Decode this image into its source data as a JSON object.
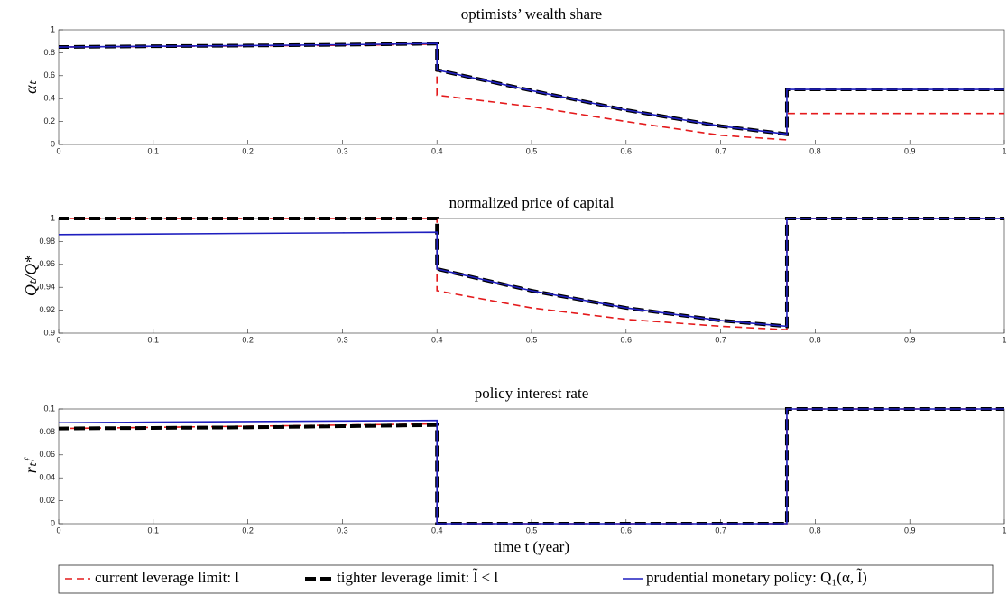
{
  "chart_data": [
    {
      "type": "line",
      "title": "optimists’ wealth share",
      "ylabel": "αₜ",
      "x": [
        0,
        0.1,
        0.2,
        0.3,
        0.4,
        0.4,
        0.5,
        0.6,
        0.7,
        0.77,
        0.77,
        0.8,
        0.9,
        1
      ],
      "xlim": [
        0,
        1
      ],
      "xticks": [
        0,
        0.1,
        0.2,
        0.3,
        0.4,
        0.5,
        0.6,
        0.7,
        0.8,
        0.9,
        1
      ],
      "ylim": [
        0,
        1
      ],
      "yticks": [
        0,
        0.2,
        0.4,
        0.6,
        0.8,
        1
      ],
      "series": [
        {
          "name": "current leverage limit: l",
          "color": "#e41a1c",
          "line_style": "dashed",
          "line_width": 1.6,
          "values": [
            0.85,
            0.855,
            0.86,
            0.865,
            0.875,
            0.43,
            0.33,
            0.2,
            0.08,
            0.04,
            0.27,
            0.27,
            0.27,
            0.27
          ]
        },
        {
          "name": "tighter leverage limit: l̃ < l",
          "color": "#000000",
          "line_style": "dashed",
          "line_width": 4,
          "values": [
            0.85,
            0.857,
            0.863,
            0.87,
            0.88,
            0.65,
            0.47,
            0.3,
            0.16,
            0.09,
            0.48,
            0.48,
            0.48,
            0.48
          ]
        },
        {
          "name": "prudential monetary policy: Q₁(α, l̃)",
          "color": "#1f1fbf",
          "line_style": "solid",
          "line_width": 1.6,
          "values": [
            0.85,
            0.857,
            0.863,
            0.87,
            0.88,
            0.65,
            0.47,
            0.3,
            0.16,
            0.09,
            0.48,
            0.48,
            0.48,
            0.48
          ]
        }
      ]
    },
    {
      "type": "line",
      "title": "normalized price of capital",
      "ylabel": "Qₜ/Q*",
      "x": [
        0,
        0.1,
        0.2,
        0.3,
        0.4,
        0.4,
        0.5,
        0.6,
        0.7,
        0.77,
        0.77,
        0.8,
        0.9,
        1
      ],
      "xlim": [
        0,
        1
      ],
      "xticks": [
        0,
        0.1,
        0.2,
        0.3,
        0.4,
        0.5,
        0.6,
        0.7,
        0.8,
        0.9,
        1
      ],
      "ylim": [
        0.9,
        1
      ],
      "yticks": [
        0.9,
        0.92,
        0.94,
        0.96,
        0.98,
        1
      ],
      "series": [
        {
          "color": "#e41a1c",
          "line_style": "dashed",
          "line_width": 1.6,
          "values": [
            1,
            1,
            1,
            1,
            1,
            0.937,
            0.922,
            0.912,
            0.906,
            0.903,
            1,
            1,
            1,
            1
          ]
        },
        {
          "color": "#000000",
          "line_style": "dashed",
          "line_width": 4,
          "values": [
            1,
            1,
            1,
            1,
            1,
            0.956,
            0.937,
            0.922,
            0.911,
            0.906,
            1,
            1,
            1,
            1
          ]
        },
        {
          "color": "#1f1fbf",
          "line_style": "solid",
          "line_width": 1.6,
          "values": [
            0.986,
            0.9865,
            0.987,
            0.9875,
            0.988,
            0.956,
            0.937,
            0.922,
            0.911,
            0.906,
            1,
            1,
            1,
            1
          ]
        }
      ]
    },
    {
      "type": "line",
      "title": "policy interest rate",
      "ylabel": "rₜᶠ",
      "xlabel": "time t (year)",
      "x": [
        0,
        0.1,
        0.2,
        0.3,
        0.4,
        0.4,
        0.5,
        0.6,
        0.7,
        0.77,
        0.77,
        0.8,
        0.9,
        1
      ],
      "xlim": [
        0,
        1
      ],
      "xticks": [
        0,
        0.1,
        0.2,
        0.3,
        0.4,
        0.5,
        0.6,
        0.7,
        0.8,
        0.9,
        1
      ],
      "ylim": [
        0,
        0.1
      ],
      "yticks": [
        0,
        0.02,
        0.04,
        0.06,
        0.08,
        0.1
      ],
      "series": [
        {
          "color": "#e41a1c",
          "line_style": "dashed",
          "line_width": 1.6,
          "values": [
            0.083,
            0.084,
            0.085,
            0.086,
            0.087,
            0,
            0,
            0,
            0,
            0,
            0.1,
            0.1,
            0.1,
            0.1
          ]
        },
        {
          "color": "#000000",
          "line_style": "dashed",
          "line_width": 4,
          "values": [
            0.083,
            0.0835,
            0.084,
            0.085,
            0.086,
            0,
            0,
            0,
            0,
            0,
            0.1,
            0.1,
            0.1,
            0.1
          ]
        },
        {
          "color": "#1f1fbf",
          "line_style": "solid",
          "line_width": 1.6,
          "values": [
            0.088,
            0.0885,
            0.089,
            0.0895,
            0.09,
            0,
            0,
            0,
            0,
            0,
            0.1,
            0.1,
            0.1,
            0.1
          ]
        }
      ]
    }
  ]
}
